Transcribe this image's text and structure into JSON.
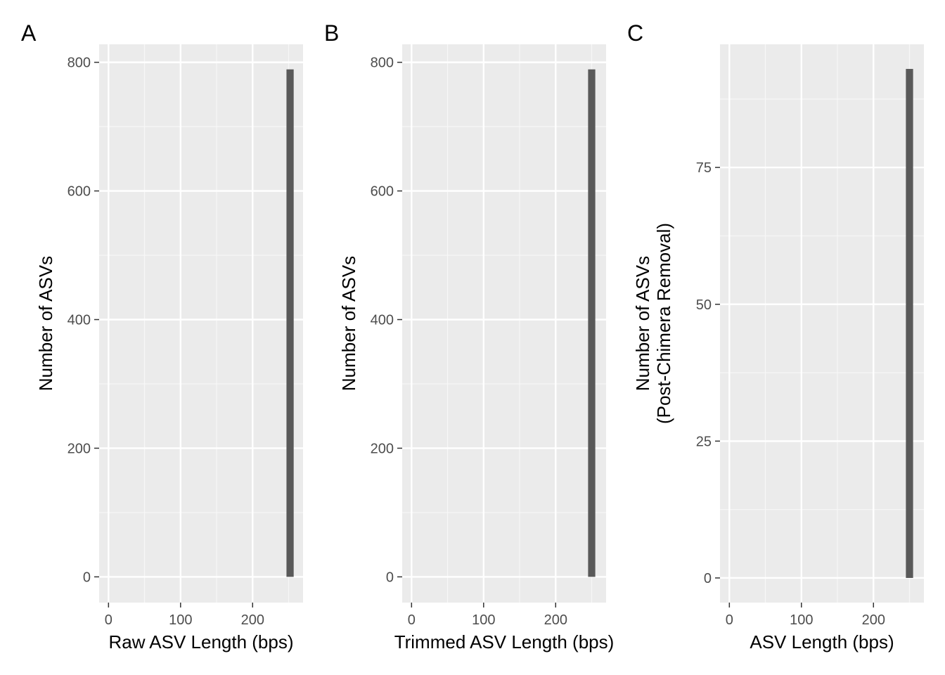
{
  "chart_data": [
    {
      "type": "bar",
      "panel": "A",
      "xlabel": "Raw ASV Length (bps)",
      "ylabel": [
        "Number of ASVs"
      ],
      "x_ticks": [
        0,
        100,
        200
      ],
      "y_ticks": [
        0,
        200,
        400,
        600,
        800
      ],
      "xlim": [
        -13,
        270
      ],
      "ylim": [
        -40,
        828
      ],
      "grid": true,
      "bars": [
        {
          "x": 252,
          "count": 789
        }
      ]
    },
    {
      "type": "bar",
      "panel": "B",
      "xlabel": "Trimmed ASV Length (bps)",
      "ylabel": [
        "Number of ASVs"
      ],
      "x_ticks": [
        0,
        100,
        200
      ],
      "y_ticks": [
        0,
        200,
        400,
        600,
        800
      ],
      "xlim": [
        -13,
        270
      ],
      "ylim": [
        -40,
        828
      ],
      "grid": true,
      "bars": [
        {
          "x": 250,
          "count": 789
        }
      ]
    },
    {
      "type": "bar",
      "panel": "C",
      "xlabel": "ASV Length (bps)",
      "ylabel": [
        "Number of ASVs",
        "(Post-Chimera Removal)"
      ],
      "x_ticks": [
        0,
        100,
        200
      ],
      "y_ticks": [
        0,
        25,
        50,
        75
      ],
      "xlim": [
        -13,
        270
      ],
      "ylim": [
        -4.5,
        97.5
      ],
      "grid": true,
      "bars": [
        {
          "x": 250,
          "count": 93
        }
      ]
    }
  ],
  "colors": {
    "panel_background": "#ebebeb",
    "grid_major": "#ffffff",
    "grid_minor": "#f7f7f7",
    "bar_fill": "#595959",
    "tick_text": "#4d4d4d",
    "axis_ticks": "#333333"
  }
}
